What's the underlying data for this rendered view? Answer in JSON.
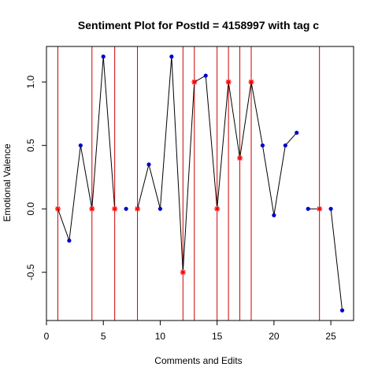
{
  "chart_data": {
    "type": "line",
    "title": "Sentiment Plot for PostId =  4158997  with tag  c",
    "xlabel": "Comments and Edits",
    "ylabel": "Emotional Valence",
    "xlim": [
      0,
      27
    ],
    "ylim": [
      -0.88,
      1.28
    ],
    "x_ticks": [
      0,
      5,
      10,
      15,
      20,
      25
    ],
    "y_ticks": [
      -0.5,
      0.0,
      0.5,
      1.0
    ],
    "y_tick_labels": [
      "-0.5",
      "0.0",
      "0.5",
      "1.0"
    ],
    "grid": false,
    "legend": "none",
    "x": [
      1,
      2,
      3,
      4,
      5,
      6,
      7,
      8,
      9,
      10,
      11,
      12,
      13,
      14,
      15,
      16,
      17,
      18,
      19,
      20,
      21,
      22,
      23,
      24,
      25,
      26
    ],
    "y": [
      0,
      -0.25,
      0.5,
      0,
      1.2,
      0,
      0,
      0,
      0.35,
      0,
      1.2,
      -0.5,
      1.0,
      1.05,
      0,
      1.0,
      0.4,
      1.0,
      0.5,
      -0.05,
      0.5,
      0.6,
      0,
      0,
      0,
      -0.8
    ],
    "line_gaps_after_x": [
      6,
      7,
      22,
      24
    ],
    "edit_markers_x": [
      1,
      4,
      6,
      8,
      12,
      13,
      15,
      16,
      17,
      18,
      24
    ],
    "vertical_lines_x": [
      1,
      4,
      6,
      8,
      12,
      13,
      15,
      16,
      17,
      18,
      24
    ],
    "colors": {
      "line": "#000000",
      "point": "#0000cc",
      "edit_marker": "#ff0000",
      "vertical_line": "#cc0000"
    }
  }
}
